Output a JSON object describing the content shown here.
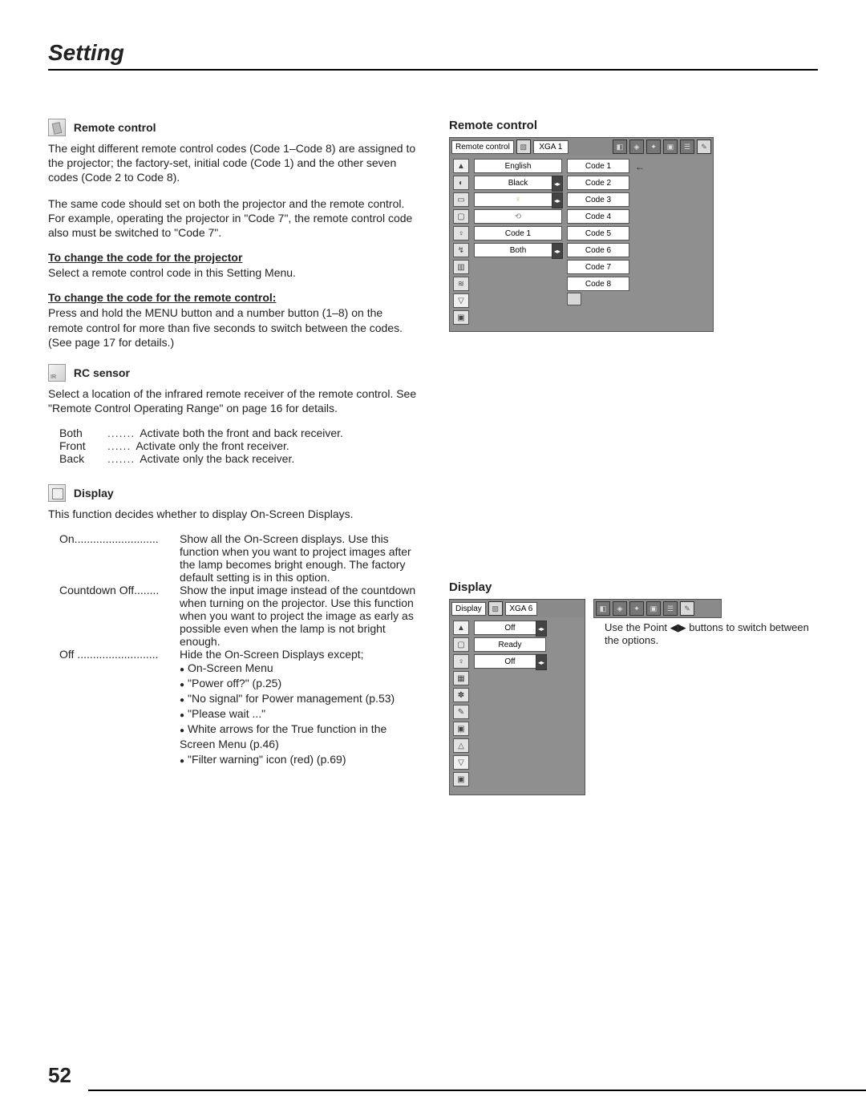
{
  "page": {
    "title": "Setting",
    "number": "52"
  },
  "remote": {
    "heading": "Remote control",
    "p1": "The eight different remote control codes (Code 1–Code 8) are assigned to the projector; the factory-set, initial code (Code 1) and the other seven codes (Code 2 to Code 8).",
    "p2": "The same code should set on both the projector and the remote control. For example, operating the projector in \"Code 7\", the remote control code also must be switched to \"Code 7\".",
    "h_proj": "To change the code for the projector",
    "proj_text": "Select a remote control code in this Setting Menu.",
    "h_rc": "To change the code for the remote control:",
    "rc_text": "Press and hold the MENU button and a number button (1–8) on the remote control for more than five seconds to switch between the codes. (See page 17 for details.)"
  },
  "rcsensor": {
    "heading": "RC sensor",
    "p1": "Select a location of the infrared remote receiver of the remote control. See \"Remote Control Operating Range\" on page 16 for details.",
    "rows": [
      {
        "term": "Both",
        "dots": ".......",
        "desc": "Activate both the front and back receiver."
      },
      {
        "term": "Front",
        "dots": "......",
        "desc": "Activate only the front receiver."
      },
      {
        "term": "Back",
        "dots": ".......",
        "desc": "Activate only the back receiver."
      }
    ]
  },
  "display": {
    "heading": "Display",
    "intro": "This function decides whether to display On-Screen Displays.",
    "rows": [
      {
        "term": "On...........................",
        "desc": "Show all the On-Screen displays. Use this function when you want to project images after the lamp becomes bright enough. The factory default setting is in this option."
      },
      {
        "term": "Countdown Off........",
        "desc": "Show the input image instead of the countdown when turning on the projector. Use this function when you want to project the image as early as possible even when the lamp is not bright enough."
      },
      {
        "term": "Off ..........................",
        "desc": "Hide the On-Screen Displays except;"
      }
    ],
    "bullets": [
      "On-Screen Menu",
      "\"Power off?\" (p.25)",
      "\"No signal\" for Power management (p.53)",
      "\"Please wait ...\"",
      "White arrows for the True function in the Screen Menu (p.46)",
      "\"Filter warning\" icon (red) (p.69)"
    ]
  },
  "rightRemote": {
    "heading": "Remote control",
    "header_label": "Remote control",
    "xga": "XGA 1",
    "centerItems": [
      "English",
      "Black",
      "",
      "",
      "Code 1",
      "Both"
    ],
    "lrFlags": [
      false,
      true,
      true,
      false,
      false,
      true
    ],
    "lampIdx": 2,
    "linkIdx": 3,
    "codes": [
      "Code 1",
      "Code 2",
      "Code 3",
      "Code 4",
      "Code 5",
      "Code 6",
      "Code 7",
      "Code 8"
    ],
    "selectedCode": 0
  },
  "rightDisplay": {
    "heading": "Display",
    "header_label": "Display",
    "xga": "XGA 6",
    "centerItems": [
      "Off",
      "Ready",
      "Off"
    ],
    "lrFlags": [
      true,
      false,
      true
    ],
    "note": "Use the Point ◀▶ buttons to switch between the options."
  },
  "colors": {
    "panel_bg": "#8f8f8f"
  }
}
